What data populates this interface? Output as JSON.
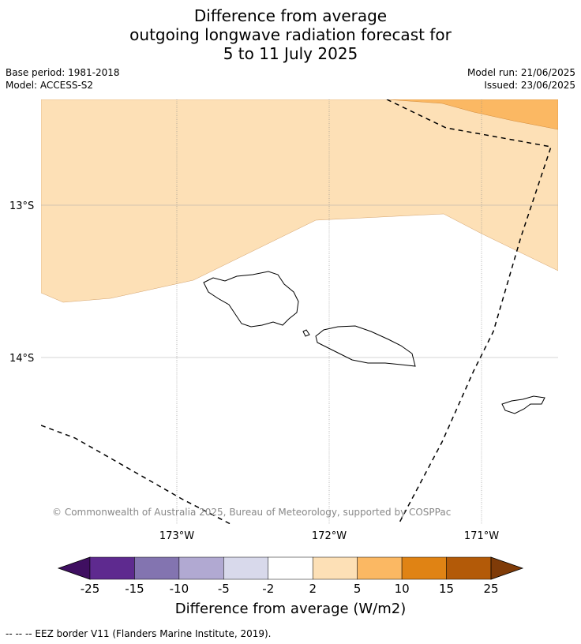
{
  "title": {
    "line1": "Difference from average",
    "line2": "outgoing longwave radiation forecast for",
    "line3": "5 to 11 July 2025"
  },
  "meta": {
    "base_period": "Base period: 1981-2018",
    "model": "Model: ACCESS-S2",
    "model_run": "Model run: 21/06/2025",
    "issued": "Issued: 23/06/2025"
  },
  "map": {
    "lat_labels": [
      "13°S",
      "14°S"
    ],
    "lon_labels": [
      "173°W",
      "172°W",
      "171°W"
    ],
    "copyright": "© Commonwealth of Australia 2025, Bureau of Meteorology, supported by COSPPac",
    "region_colors": {
      "2_to_5": "#fde0b6",
      "5_to_10": "#fbb863"
    }
  },
  "colorbar": {
    "tick_labels": [
      "-25",
      "-15",
      "-10",
      "-5",
      "-2",
      "2",
      "5",
      "10",
      "15",
      "25"
    ],
    "colors": [
      "#3f0f61",
      "#5e2a8f",
      "#8374b0",
      "#b1a9d2",
      "#d8d9eb",
      "#ffffff",
      "#fde0b6",
      "#fbb863",
      "#e08314",
      "#b35a08",
      "#7f3b08"
    ],
    "title": "Difference from average (W/m2)"
  },
  "footer": {
    "legend_text": "--  --  -- EEZ border V11 (Flanders Marine Institute, 2019)."
  }
}
